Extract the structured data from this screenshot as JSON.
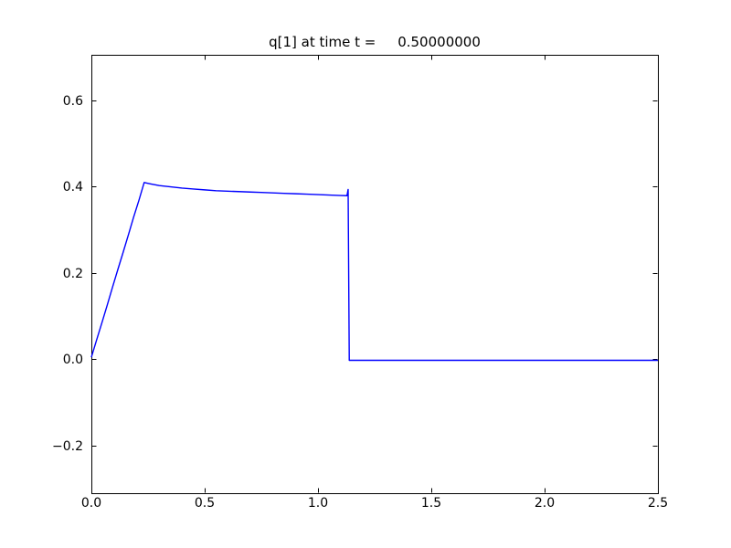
{
  "figure": {
    "background": "#ffffff"
  },
  "chart_data": {
    "type": "line",
    "title": "q[1] at time t =     0.50000000",
    "xlabel": "",
    "ylabel": "",
    "grid": false,
    "legend": null,
    "frame_color": "#000000",
    "tick_color": "#000000",
    "xlim": [
      0.0,
      2.5
    ],
    "ylim": [
      -0.311,
      0.705
    ],
    "xticks": {
      "values": [
        0.0,
        0.5,
        1.0,
        1.5,
        2.0,
        2.5
      ],
      "labels": [
        "0.0",
        "0.5",
        "1.0",
        "1.5",
        "2.0",
        "2.5"
      ]
    },
    "yticks": {
      "values": [
        -0.2,
        0.0,
        0.2,
        0.4,
        0.6
      ],
      "labels": [
        "−0.2",
        "0.0",
        "0.2",
        "0.4",
        "0.6"
      ]
    },
    "series": [
      {
        "name": "q[1]",
        "color": "#0000ff",
        "x": [
          0.0,
          0.023,
          0.047,
          0.07,
          0.093,
          0.116,
          0.14,
          0.163,
          0.186,
          0.21,
          0.233,
          0.26,
          0.3,
          0.35,
          0.4,
          0.45,
          0.5,
          0.55,
          0.6,
          0.65,
          0.7,
          0.75,
          0.8,
          0.85,
          0.9,
          0.95,
          1.0,
          1.05,
          1.1,
          1.128,
          1.133,
          1.138,
          1.2,
          1.4,
          1.6,
          1.8,
          2.0,
          2.25,
          2.5
        ],
        "y": [
          0.004,
          0.044,
          0.085,
          0.125,
          0.166,
          0.206,
          0.247,
          0.287,
          0.328,
          0.368,
          0.409,
          0.406,
          0.402,
          0.399,
          0.396,
          0.394,
          0.392,
          0.39,
          0.389,
          0.388,
          0.387,
          0.386,
          0.385,
          0.384,
          0.383,
          0.382,
          0.381,
          0.38,
          0.379,
          0.3785,
          0.393,
          -0.003,
          -0.003,
          -0.003,
          -0.003,
          -0.003,
          -0.003,
          -0.003,
          -0.003
        ]
      }
    ]
  }
}
